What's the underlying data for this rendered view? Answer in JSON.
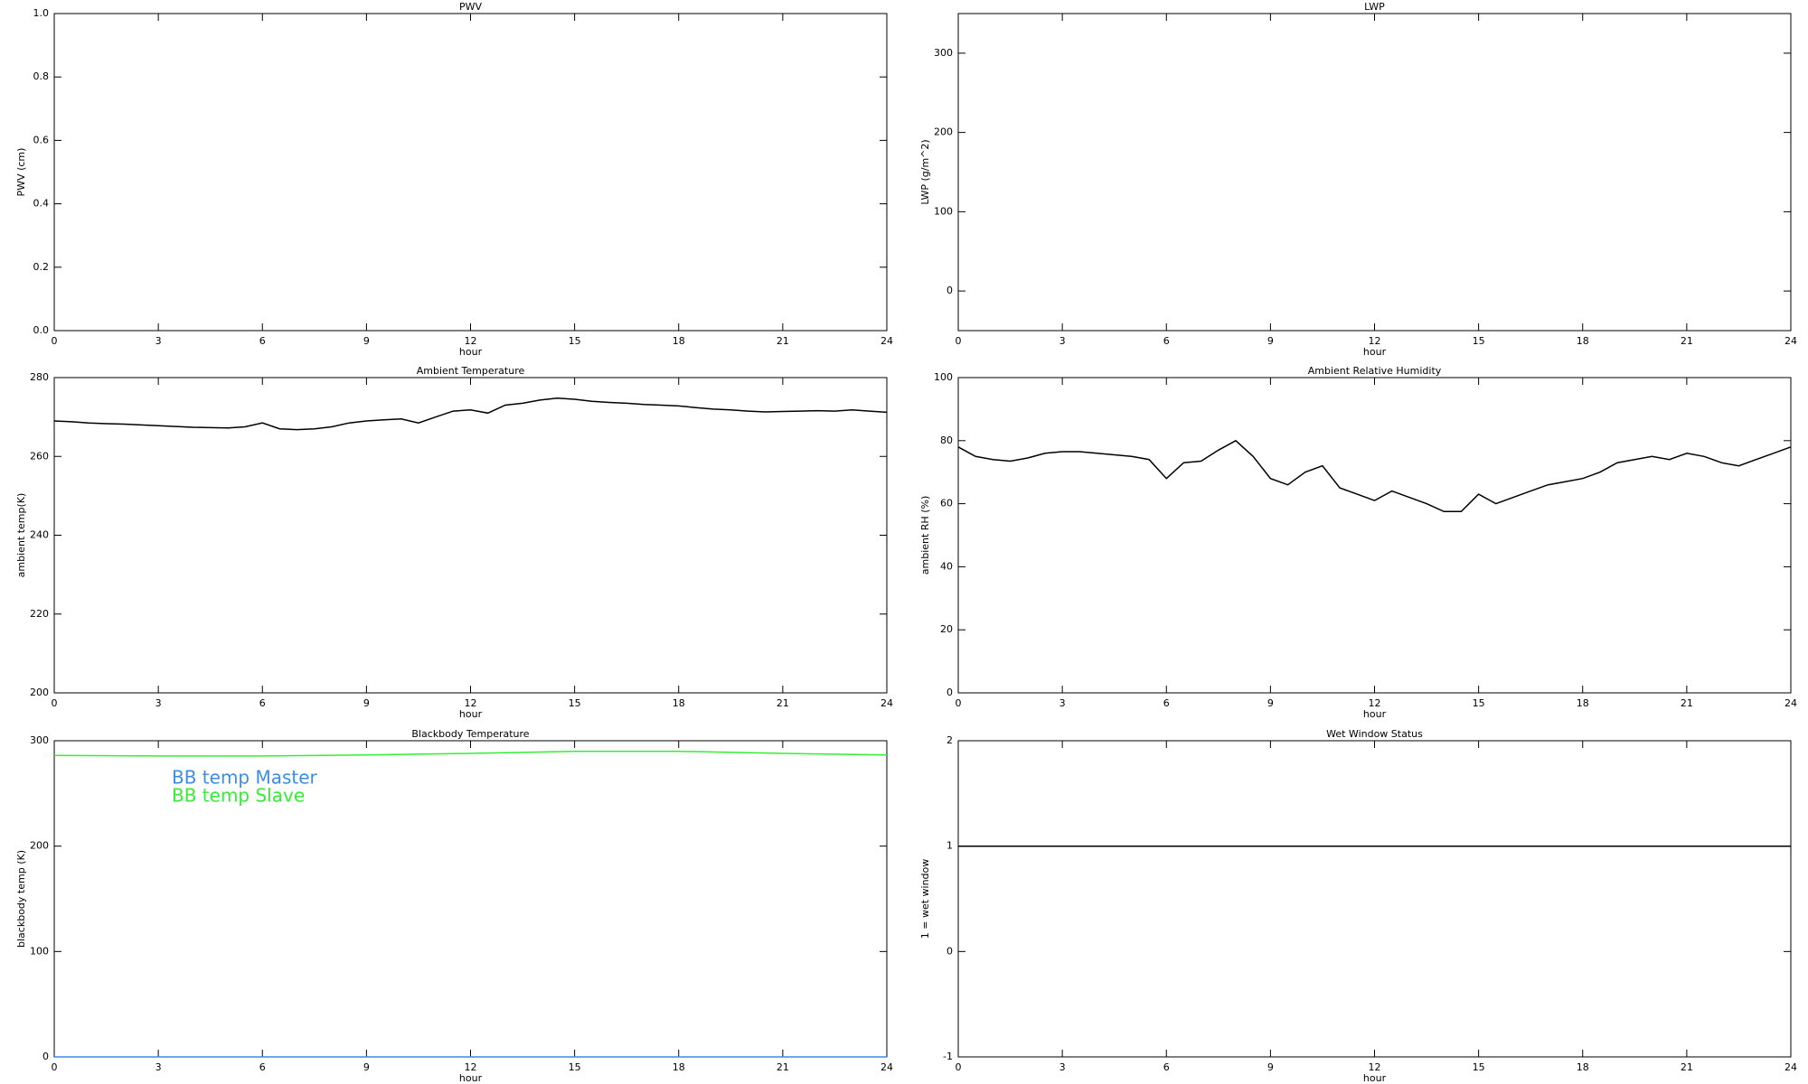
{
  "chart_data": [
    {
      "type": "line",
      "title": "PWV",
      "ylabel": "PWV (cm)",
      "xlabel": "hour",
      "xlim": [
        0,
        24
      ],
      "xticks": [
        0,
        3,
        6,
        9,
        12,
        15,
        18,
        21,
        24
      ],
      "ylim": [
        0,
        1
      ],
      "yticks": [
        {
          "value": 0,
          "label": "0.0"
        },
        0.2,
        0.4,
        0.6,
        0.8,
        {
          "value": 1,
          "label": "1.0"
        }
      ],
      "series": []
    },
    {
      "type": "line",
      "title": "LWP",
      "ylabel": "LWP (g/m^2)",
      "xlabel": "hour",
      "xlim": [
        0,
        24
      ],
      "xticks": [
        0,
        3,
        6,
        9,
        12,
        15,
        18,
        21,
        24
      ],
      "ylim": [
        -50,
        350
      ],
      "yticks": [
        0,
        100,
        200,
        300
      ],
      "series": []
    },
    {
      "type": "line",
      "title": "Ambient Temperature",
      "ylabel": "ambient temp(K)",
      "xlabel": "hour",
      "xlim": [
        0,
        24
      ],
      "xticks": [
        0,
        3,
        6,
        9,
        12,
        15,
        18,
        21,
        24
      ],
      "ylim": [
        200,
        280
      ],
      "yticks": [
        200,
        220,
        240,
        260,
        280
      ],
      "x": [
        0,
        0.5,
        1,
        1.5,
        2,
        2.5,
        3,
        3.5,
        4,
        4.5,
        5,
        5.5,
        6,
        6.5,
        7,
        7.5,
        8,
        8.5,
        9,
        9.5,
        10,
        10.5,
        11,
        11.5,
        12,
        12.5,
        13,
        13.5,
        14,
        14.5,
        15,
        15.5,
        16,
        16.5,
        17,
        17.5,
        18,
        18.5,
        19,
        19.5,
        20,
        20.5,
        21,
        21.5,
        22,
        22.5,
        23,
        23.5,
        24
      ],
      "series": [
        {
          "color": "#000000",
          "values": [
            269,
            268.8,
            268.5,
            268.3,
            268.2,
            268,
            267.8,
            267.6,
            267.4,
            267.3,
            267.2,
            267.5,
            268.5,
            267,
            266.8,
            267,
            267.5,
            268.5,
            269,
            269.3,
            269.5,
            268.5,
            270,
            271.5,
            271.8,
            271,
            273,
            273.5,
            274.3,
            274.8,
            274.5,
            274,
            273.7,
            273.5,
            273.2,
            273,
            272.8,
            272.4,
            272,
            271.8,
            271.5,
            271.3,
            271.4,
            271.5,
            271.6,
            271.5,
            271.8,
            271.5,
            271.2
          ]
        }
      ]
    },
    {
      "type": "line",
      "title": "Ambient Relative Humidity",
      "ylabel": "ambient RH (%)",
      "xlabel": "hour",
      "xlim": [
        0,
        24
      ],
      "xticks": [
        0,
        3,
        6,
        9,
        12,
        15,
        18,
        21,
        24
      ],
      "ylim": [
        0,
        100
      ],
      "yticks": [
        0,
        20,
        40,
        60,
        80,
        100
      ],
      "x": [
        0,
        0.5,
        1,
        1.5,
        2,
        2.5,
        3,
        3.5,
        4,
        4.5,
        5,
        5.5,
        6,
        6.5,
        7,
        7.5,
        8,
        8.5,
        9,
        9.5,
        10,
        10.5,
        11,
        11.5,
        12,
        12.5,
        13,
        13.5,
        14,
        14.5,
        15,
        15.5,
        16,
        16.5,
        17,
        17.5,
        18,
        18.5,
        19,
        19.5,
        20,
        20.5,
        21,
        21.5,
        22,
        22.5,
        23,
        23.5,
        24
      ],
      "series": [
        {
          "color": "#000000",
          "values": [
            78,
            75,
            74,
            73.5,
            74.5,
            76,
            76.5,
            76.5,
            76,
            75.5,
            75,
            74,
            68,
            73,
            73.5,
            77,
            80,
            75,
            68,
            66,
            70,
            72,
            65,
            63,
            61,
            64,
            62,
            60,
            57.5,
            57.5,
            63,
            60,
            62,
            64,
            66,
            67,
            68,
            70,
            73,
            74,
            75,
            74,
            76,
            75,
            73,
            72,
            74,
            76,
            78
          ]
        }
      ]
    },
    {
      "type": "line",
      "title": "Blackbody Temperature",
      "ylabel": "blackbody temp (K)",
      "xlabel": "hour",
      "xlim": [
        0,
        24
      ],
      "xticks": [
        0,
        3,
        6,
        9,
        12,
        15,
        18,
        21,
        24
      ],
      "ylim": [
        0,
        300
      ],
      "yticks": [
        0,
        100,
        200,
        300
      ],
      "legend": "upper left",
      "x": [
        0,
        3,
        6,
        9,
        12,
        15,
        18,
        21,
        24
      ],
      "series": [
        {
          "name": "BB temp Master",
          "color": "#3c8ce6",
          "values": [
            0,
            0,
            0,
            0,
            0,
            0,
            0,
            0,
            0
          ]
        },
        {
          "name": "BB temp Slave",
          "color": "#33ee33",
          "values": [
            286,
            285.5,
            285.5,
            286.5,
            288,
            290,
            290,
            288,
            286.5
          ]
        }
      ]
    },
    {
      "type": "line",
      "title": "Wet Window Status",
      "ylabel": "1 = wet window",
      "xlabel": "hour",
      "xlim": [
        0,
        24
      ],
      "xticks": [
        0,
        3,
        6,
        9,
        12,
        15,
        18,
        21,
        24
      ],
      "ylim": [
        -1,
        2
      ],
      "yticks": [
        -1,
        0,
        1,
        2
      ],
      "x": [
        0,
        24
      ],
      "series": [
        {
          "color": "#000000",
          "values": [
            1,
            1
          ]
        }
      ]
    }
  ]
}
